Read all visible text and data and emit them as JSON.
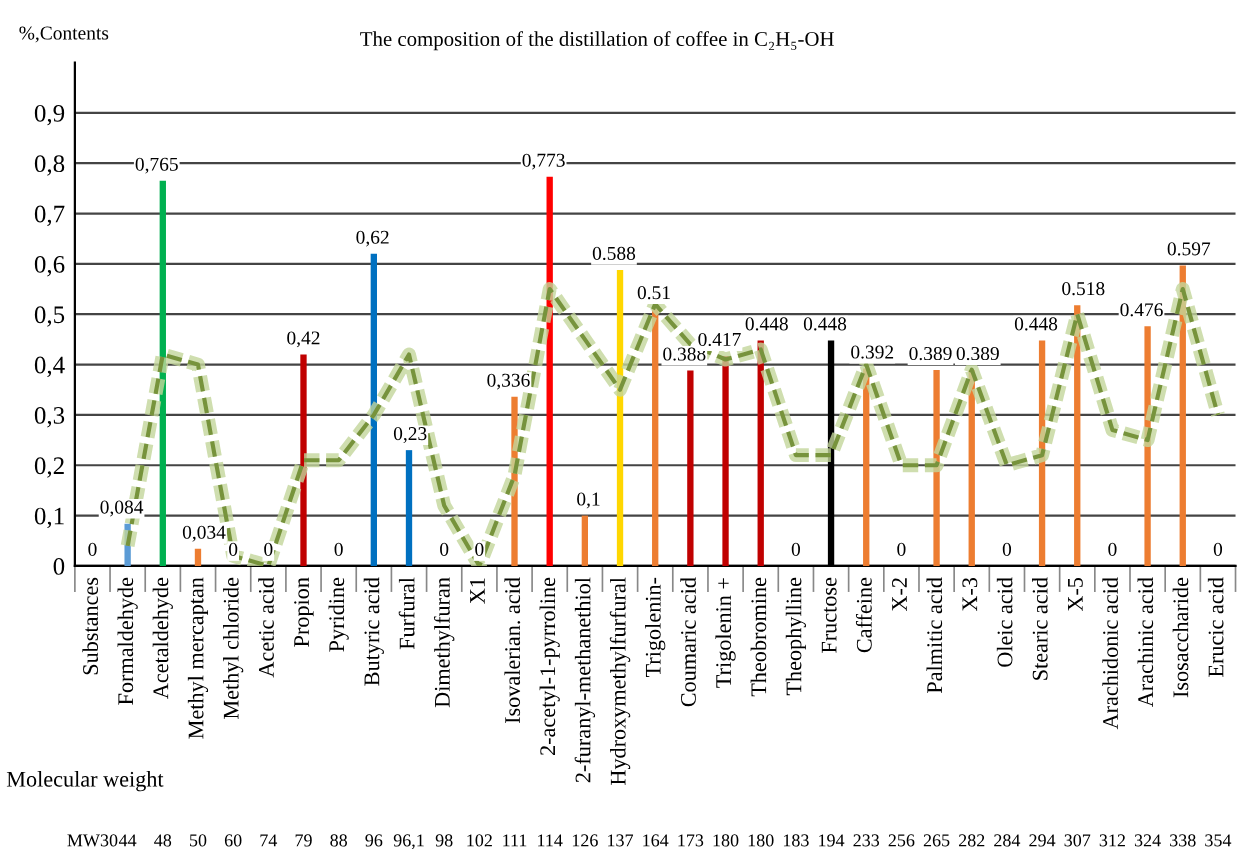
{
  "chart_data": {
    "type": "bar",
    "title": "The composition of the distillation of coffee in C₂H₅-OH",
    "ylabel": "%,Contents",
    "categories": [
      "Substances",
      "Formaldehyde",
      "Acetaldehyde",
      "Methyl mercaptan",
      "Methyl chloride",
      "Acetic acid",
      "Propion",
      "Pyridine",
      "Butyric acid",
      "Furfural",
      "Dimethylfuran",
      "X1",
      "Isovalerian. acid",
      "2-acetyl-1-pyrroline",
      "2-furanyl-methanethiol",
      "Hydroxymethylfurfural",
      "Trigolenin-",
      "Coumaric acid",
      "Trigolenin +",
      "Theobromine",
      "Theophylline",
      "Fructose",
      "Caffeine",
      "X-2",
      "Palmitic acid",
      "X-3",
      "Oleic acid",
      "Stearic acid",
      "X-5",
      "Arachidonic acid",
      "Arachinic acid",
      "Isosaccharide",
      "Erucic acid"
    ],
    "series": [
      {
        "values": [
          0,
          0.084,
          0.765,
          0.034,
          0,
          0,
          0.42,
          0,
          0.62,
          0.23,
          0,
          0,
          0.336,
          0.773,
          0.1,
          0.588,
          0.51,
          0.388,
          0.417,
          0.448,
          0,
          0.448,
          0.392,
          0,
          0.389,
          0.389,
          0,
          0.448,
          0.518,
          0,
          0.476,
          0.597,
          0
        ],
        "colors": [
          "#ed7d31",
          "#5b9bd5",
          "#00b050",
          "#ed7d31",
          "#ed7d31",
          "#ed7d31",
          "#c00000",
          "#ed7d31",
          "#0070c0",
          "#0070c0",
          "#ed7d31",
          "#ed7d31",
          "#ed7d31",
          "#ff0000",
          "#ed7d31",
          "#ffd700",
          "#ed7d31",
          "#c00000",
          "#c00000",
          "#c00000",
          "#ed7d31",
          "#000000",
          "#ed7d31",
          "#ed7d31",
          "#ed7d31",
          "#ed7d31",
          "#ed7d31",
          "#ed7d31",
          "#ed7d31",
          "#ed7d31",
          "#ed7d31",
          "#ed7d31",
          "#ed7d31"
        ],
        "value_labels": [
          "0",
          "0,084",
          "0,765",
          "0,034",
          "0",
          "0",
          "0,42",
          "0",
          "0,62",
          "0,23",
          "0",
          "0",
          "0,336",
          "0,773",
          "0,1",
          "0.588",
          "0.51",
          "0.388",
          "0.417",
          "0.448",
          "0",
          "0.448",
          "0.392",
          "0",
          "0.389",
          "0.389",
          "0",
          "0.448",
          "0.518",
          "0",
          "0.476",
          "0.597",
          "0"
        ]
      },
      {
        "type": "line",
        "color": "#77933c",
        "line_style": "dashed",
        "values": [
          null,
          0.04,
          0.42,
          0.4,
          0.02,
          0.0,
          0.21,
          0.21,
          0.3,
          0.42,
          0.12,
          0.0,
          0.18,
          0.55,
          0.45,
          0.35,
          0.52,
          0.44,
          0.41,
          0.43,
          0.22,
          0.22,
          0.4,
          0.2,
          0.2,
          0.39,
          0.2,
          0.22,
          0.5,
          0.27,
          0.25,
          0.55,
          0.3
        ]
      }
    ],
    "ylim": [
      0,
      1.0
    ],
    "yticks": [
      {
        "value": 0,
        "label": "0"
      },
      {
        "value": 0.1,
        "label": "0,1"
      },
      {
        "value": 0.2,
        "label": "0,2"
      },
      {
        "value": 0.3,
        "label": "0,3"
      },
      {
        "value": 0.4,
        "label": "0,4"
      },
      {
        "value": 0.5,
        "label": "0,5"
      },
      {
        "value": 0.6,
        "label": "0,6"
      },
      {
        "value": 0.7,
        "label": "0,7"
      },
      {
        "value": 0.8,
        "label": "0,8"
      },
      {
        "value": 0.9,
        "label": "0,9"
      }
    ],
    "grid": "y",
    "annotations": [
      "Molecular weight",
      "MW30",
      "44",
      "48",
      "50",
      "60",
      "74",
      "79",
      "88",
      "96",
      "96,1",
      "98",
      "102",
      "111",
      "114",
      "126",
      "137",
      "164",
      "173",
      "180",
      "180",
      "183",
      "194",
      "233",
      "256",
      "265",
      "282",
      "284",
      "294",
      "307",
      "312",
      "324",
      "338",
      "354"
    ]
  }
}
